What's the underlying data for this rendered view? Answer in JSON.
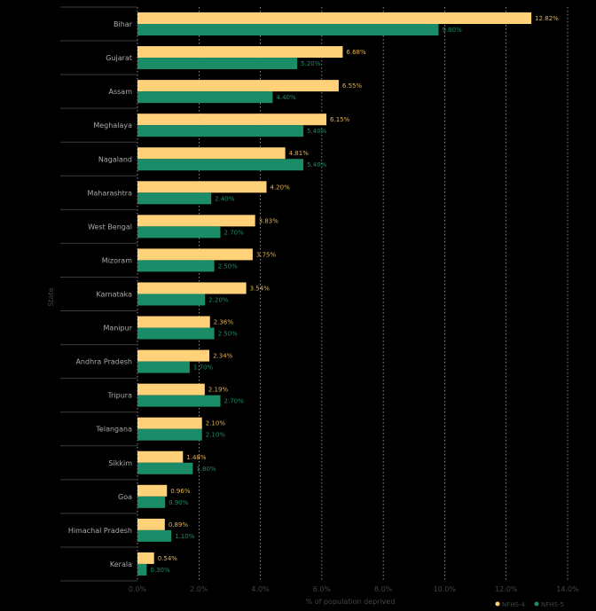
{
  "colors": {
    "background": "#000000",
    "nfhs4": "#ffd27a",
    "nfhs5": "#1a8c67",
    "grid": "#e8e8e8",
    "label_nfhs4": "#e0b050",
    "label_nfhs5": "#1a8c67"
  },
  "chart_data": {
    "type": "bar",
    "orientation": "horizontal",
    "title": "",
    "xlabel": "% of population deprived",
    "ylabel": "State",
    "xlim": [
      0,
      14
    ],
    "xticks": [
      0,
      2,
      4,
      6,
      8,
      10,
      12,
      14
    ],
    "xtick_labels": [
      "0.0%",
      "2.0%",
      "4.0%",
      "6.0%",
      "8.0%",
      "10.0%",
      "12.0%",
      "14.0%"
    ],
    "categories": [
      "Bihar",
      "Gujarat",
      "Assam",
      "Meghalaya",
      "Nagaland",
      "Maharashtra",
      "West Bengal",
      "Mizoram",
      "Karnataka",
      "Manipur",
      "Andhra Pradesh",
      "Tripura",
      "Telangana",
      "Sikkim",
      "Goa",
      "Himachal Pradesh",
      "Kerala"
    ],
    "series": [
      {
        "name": "NFHS-4",
        "values": [
          12.82,
          6.68,
          6.55,
          6.15,
          4.81,
          4.2,
          3.83,
          3.75,
          3.54,
          2.36,
          2.34,
          2.19,
          2.1,
          1.48,
          0.96,
          0.89,
          0.54
        ],
        "labels": [
          "12.82%",
          "6.68%",
          "6.55%",
          "6.15%",
          "4.81%",
          "4.20%",
          "3.83%",
          "3.75%",
          "3.54%",
          "2.36%",
          "2.34%",
          "2.19%",
          "2.10%",
          "1.48%",
          "0.96%",
          "0.89%",
          "0.54%"
        ]
      },
      {
        "name": "NFHS-5",
        "values": [
          9.8,
          5.2,
          4.4,
          5.4,
          5.4,
          2.4,
          2.7,
          2.5,
          2.2,
          2.5,
          1.7,
          2.7,
          2.1,
          1.8,
          0.9,
          1.1,
          0.3
        ],
        "labels": [
          "9.80%",
          "5.20%",
          "4.40%",
          "5.40%",
          "5.40%",
          "2.40%",
          "2.70%",
          "2.50%",
          "2.20%",
          "2.50%",
          "1.70%",
          "2.70%",
          "2.10%",
          "1.80%",
          "0.90%",
          "1.10%",
          "0.30%"
        ]
      }
    ],
    "grid": true,
    "legend_position": "bottom-right"
  }
}
